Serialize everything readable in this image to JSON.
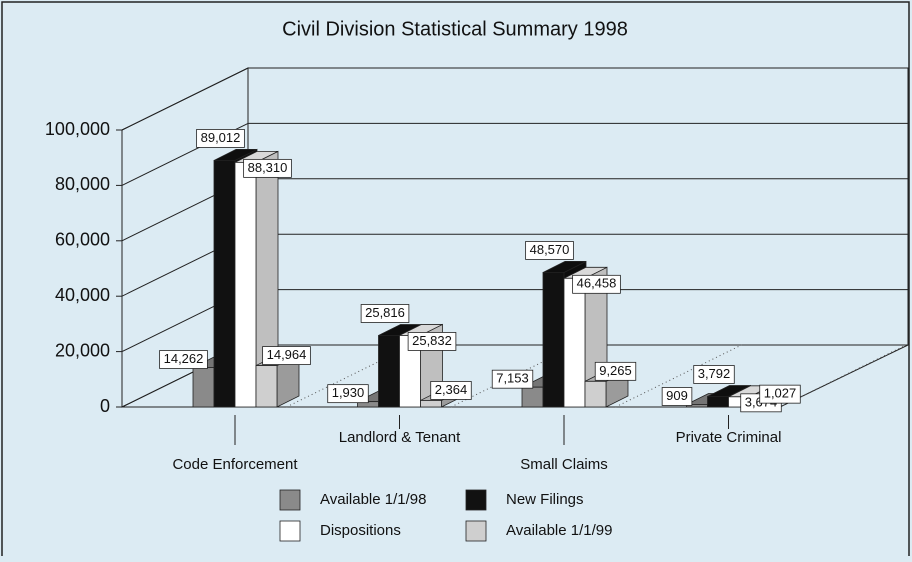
{
  "chart_data": {
    "type": "bar3d",
    "title": "Civil Division Statistical Summary 1998",
    "categories": [
      "Code Enforcement",
      "Landlord & Tenant",
      "Small Claims",
      "Private Criminal"
    ],
    "series": [
      {
        "name": "Available 1/1/98",
        "color": "#8a8a8a",
        "values": [
          14262,
          1930,
          7153,
          909
        ],
        "value_labels": [
          "14,262",
          "1,930",
          "7,153",
          "909"
        ]
      },
      {
        "name": "New Filings",
        "color": "#111111",
        "values": [
          89012,
          25816,
          48570,
          3792
        ],
        "value_labels": [
          "89,012",
          "25,816",
          "48,570",
          "3,792"
        ]
      },
      {
        "name": "Dispositions",
        "color": "#ffffff",
        "values": [
          88310,
          25832,
          46458,
          3674
        ],
        "value_labels": [
          "88,310",
          "25,832",
          "46,458",
          "3,674"
        ]
      },
      {
        "name": "Available 1/1/99",
        "color": "#cfcfcf",
        "values": [
          14964,
          2364,
          9265,
          1027
        ],
        "value_labels": [
          "14,964",
          "2,364",
          "9,265",
          "1,027"
        ]
      }
    ],
    "ylim": [
      0,
      100000
    ],
    "yticks": [
      0,
      {
        "value": 20000,
        "label": "20,000"
      },
      {
        "value": 40000,
        "label": "40,000"
      },
      {
        "value": 60000,
        "label": "60,000"
      },
      {
        "value": 80000,
        "label": "80,000"
      },
      {
        "value": 100000,
        "label": "100,000"
      }
    ],
    "grid": true
  }
}
